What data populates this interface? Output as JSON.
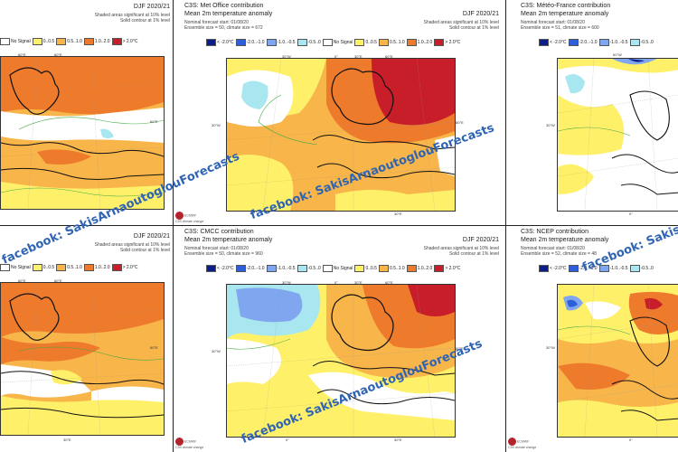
{
  "panels": {
    "tl": {
      "season": "DJF 2020/21",
      "sig1": "Shaded areas significant at 10% level",
      "sig2": "Solid contour at 1% level",
      "legend": [
        "No Signal",
        "0..0.5",
        "0.5..1.0",
        "1.0..2.0",
        "> 2.0°C"
      ],
      "tick_top": "60°E",
      "tick_right": "60°E"
    },
    "tm": {
      "title": "C3S: Met Office contribution",
      "subtitle": "Mean 2m temperature anomaly",
      "season": "DJF 2020/21",
      "info1": "Nominal forecast start: 01/08/20",
      "info2": "Ensemble size = 50, climate size = 672",
      "sig1": "Shaded areas significant at 10% level",
      "sig2": "Solid contour at 1% level",
      "legend": [
        "< -2.0°C",
        "-2.0..-1.0",
        "-1.0..-0.5",
        "-0.5..0",
        "No Signal",
        "0..0.5",
        "0.5..1.0",
        "1.0..2.0",
        "> 2.0°C"
      ],
      "ticks": [
        "30°W",
        "0°",
        "30°E",
        "60°E",
        "30°W",
        "60°E",
        "30°E"
      ]
    },
    "tr": {
      "title": "C3S: Météo-France contribution",
      "subtitle": "Mean 2m temperature anomaly",
      "info1": "Nominal forecast start: 01/08/20",
      "info2": "Ensemble size = 51, climate size = 600",
      "legend": [
        "< -2.0°C",
        "-2.0..-1.0",
        "-1.0..-0.5",
        "-0.5..0"
      ],
      "ticks": [
        "60°W",
        "30°W",
        "0°"
      ]
    },
    "bl": {
      "season": "DJF 2020/21",
      "sig1": "Shaded areas significant at 10% level",
      "sig2": "Solid contour at 1% level",
      "legend": [
        "No Signal",
        "0..0.5",
        "0.5..1.0",
        "1.0..2.0",
        "> 2.0°C"
      ],
      "tick_top": "60°E",
      "tick_right": "60°E",
      "tick_bottom": "30°E"
    },
    "bm": {
      "title": "C3S: CMCC contribution",
      "subtitle": "Mean 2m temperature anomaly",
      "season": "DJF 2020/21",
      "info1": "Nominal forecast start: 01/08/20",
      "info2": "Ensemble size = 50, climate size = 960",
      "sig1": "Shaded areas significant at 10% level",
      "sig2": "Solid contour at 1% level",
      "legend": [
        "< -2.0°C",
        "-2.0..-1.0",
        "-1.0..-0.5",
        "-0.5..0",
        "No Signal",
        "0..0.5",
        "0.5..1.0",
        "1.0..2.0",
        "> 2.0°C"
      ],
      "ticks": [
        "30°W",
        "0°",
        "30°E",
        "60°E",
        "30°W",
        "60°E",
        "0°",
        "30°E"
      ]
    },
    "br": {
      "title": "C3S: NCEP contribution",
      "subtitle": "Mean 2m temperature anomaly",
      "info1": "Nominal forecast start: 01/08/20",
      "info2": "Ensemble size = 52, climate size = 48",
      "legend": [
        "< -2.0°C",
        "-2.0..-1.0",
        "-1.0..-0.5",
        "-0.5..0"
      ],
      "ticks": [
        "30°W",
        "0°"
      ]
    }
  },
  "logo": {
    "org": "ECMWF",
    "sub": "C3S climate change"
  },
  "watermark": "facebook: SakisArnaoutoglouForecasts",
  "colors": {
    "lt_m2": "#0a1e8c",
    "m2_m1": "#2f5fd8",
    "m1_m05": "#7fa6ee",
    "m05_0": "#a8e6f0",
    "no_signal": "#ffffff",
    "p0_05": "#fff06a",
    "p05_1": "#f7b54a",
    "p1_2": "#ee7a2c",
    "gt_2": "#c81e2a",
    "land_outline": "#111111"
  }
}
